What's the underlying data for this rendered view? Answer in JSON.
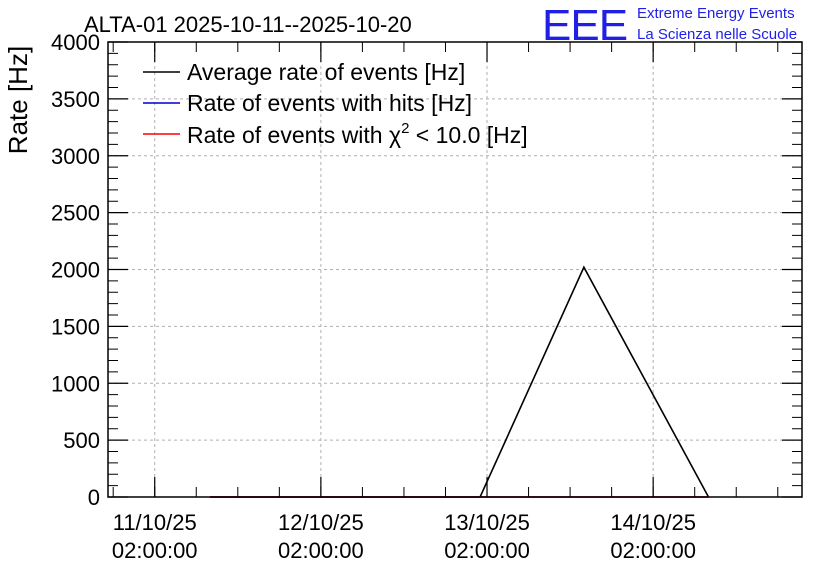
{
  "logo": {
    "mark": "EEE",
    "line1": "Extreme Energy Events",
    "line2": "La Scienza nelle Scuole"
  },
  "colors": {
    "average": "#000000",
    "hits": "#0000cc",
    "chi2": "#ff0000",
    "grid": "#b0b0b0",
    "logo": "#1f1fe6"
  },
  "chart_data": {
    "type": "line",
    "title": "ALTA-01 2025-10-11--2025-10-20",
    "xlabel": "",
    "ylabel": "Rate [Hz]",
    "ylim": [
      0,
      4000
    ],
    "yticks": [
      0,
      500,
      1000,
      1500,
      2000,
      2500,
      3000,
      3500,
      4000
    ],
    "xlim": [
      "2025-10-10 19:15",
      "2025-10-14 23:30"
    ],
    "xticks": [
      {
        "value": "2025-10-11 02:00",
        "date": "11/10/25",
        "time": "02:00:00"
      },
      {
        "value": "2025-10-12 02:00",
        "date": "12/10/25",
        "time": "02:00:00"
      },
      {
        "value": "2025-10-13 02:00",
        "date": "13/10/25",
        "time": "02:00:00"
      },
      {
        "value": "2025-10-14 02:00",
        "date": "14/10/25",
        "time": "02:00:00"
      }
    ],
    "grid": true,
    "legend_position": "top-left",
    "series": [
      {
        "name": "Average rate of events [Hz]",
        "color": "#000000",
        "points": [
          {
            "x": "2025-10-11 10:00",
            "y": 0
          },
          {
            "x": "2025-10-12 19:00",
            "y": 0
          },
          {
            "x": "2025-10-13 01:00",
            "y": 0
          },
          {
            "x": "2025-10-13 16:00",
            "y": 2020
          },
          {
            "x": "2025-10-14 10:00",
            "y": 0
          }
        ]
      },
      {
        "name": "Rate of events with hits [Hz]",
        "color": "#0000cc",
        "points": [
          {
            "x": "2025-10-11 10:00",
            "y": 0
          },
          {
            "x": "2025-10-14 10:00",
            "y": 0
          }
        ]
      },
      {
        "name": "Rate of events with χ² < 10.0 [Hz]",
        "name_main": "Rate of events with χ",
        "name_sup": "2",
        "name_tail": " < 10.0 [Hz]",
        "color": "#ff0000",
        "points": [
          {
            "x": "2025-10-11 10:00",
            "y": 0
          },
          {
            "x": "2025-10-14 10:00",
            "y": 0
          }
        ]
      }
    ]
  }
}
